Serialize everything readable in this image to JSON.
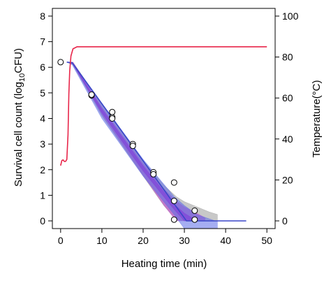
{
  "chart_data": {
    "type": "line",
    "xlabel": "Heating time (min)",
    "ylabel_left_main": "Survival cell count (log",
    "ylabel_left_sub": "10",
    "ylabel_left_end": "CFU)",
    "ylabel_right": "Temperature(°C)",
    "xlim": [
      -2,
      52
    ],
    "ylim": [
      -0.3,
      8.3
    ],
    "y2lim": [
      -3.75,
      103.75
    ],
    "x_ticks": [
      0,
      10,
      20,
      30,
      40,
      50
    ],
    "x_tick_labels": [
      "0",
      "10",
      "20",
      "30",
      "40",
      "50"
    ],
    "y_ticks": [
      0,
      1,
      2,
      3,
      4,
      5,
      6,
      7,
      8
    ],
    "y_tick_labels": [
      "0",
      "1",
      "2",
      "3",
      "4",
      "5",
      "6",
      "7",
      "8"
    ],
    "y2_ticks": [
      0,
      20,
      40,
      60,
      80,
      100
    ],
    "y2_tick_labels": [
      "0",
      "20",
      "40",
      "60",
      "80",
      "100"
    ],
    "colors": {
      "temperature": "#e8264a",
      "prediction_band_outer": "#9a9a9a",
      "prediction_band_mid": "#c060c8",
      "confidence_band": "#5b6be8",
      "confidence_band_inner": "#7e3cd9",
      "fit_line": "#3a46c8"
    },
    "series": [
      {
        "kind": "temperature",
        "axis": "right",
        "x": [
          0,
          0.3,
          0.6,
          0.9,
          1.2,
          1.5,
          1.8,
          2.0,
          2.2,
          2.5,
          3,
          4,
          6,
          10,
          20,
          30,
          40,
          50
        ],
        "y": [
          27,
          29.5,
          29.8,
          29,
          29,
          30,
          42,
          62,
          73,
          80.5,
          84,
          85,
          85,
          85,
          85,
          85,
          85,
          85
        ]
      },
      {
        "kind": "observed",
        "axis": "left",
        "x": [
          0,
          7.5,
          7.5,
          12.5,
          12.5,
          12.5,
          17.5,
          17.5,
          22.5,
          22.5,
          27.5,
          27.5,
          27.5,
          32.5,
          32.5
        ],
        "y": [
          6.2,
          4.9,
          4.93,
          4.25,
          4.05,
          4.0,
          3.0,
          2.93,
          1.9,
          1.82,
          1.5,
          0.78,
          0.05,
          0.4,
          0.05
        ]
      },
      {
        "kind": "fit",
        "axis": "left",
        "x": [
          1.5,
          2.8,
          30.5,
          45
        ],
        "y": [
          6.2,
          6.18,
          0,
          0
        ]
      }
    ],
    "bands": [
      {
        "kind": "prediction-outer",
        "x": [
          1.5,
          3,
          10,
          20,
          25,
          28,
          30,
          33,
          36,
          38
        ],
        "upper": [
          6.2,
          6.2,
          4.55,
          2.35,
          1.4,
          0.95,
          0.75,
          0.55,
          0.35,
          0.25
        ],
        "lower": [
          6.2,
          6.1,
          4.1,
          1.75,
          0.6,
          0.05,
          0,
          0,
          0,
          0
        ]
      },
      {
        "kind": "prediction-mid",
        "x": [
          1.5,
          3,
          10,
          20,
          25,
          28,
          30,
          33,
          35
        ],
        "upper": [
          6.2,
          6.2,
          4.45,
          2.25,
          1.25,
          0.78,
          0.55,
          0.3,
          0.12
        ],
        "lower": [
          6.2,
          6.12,
          4.15,
          1.78,
          0.62,
          0.0,
          0,
          0,
          0
        ]
      },
      {
        "kind": "confidence",
        "x": [
          1.5,
          2.8,
          10,
          20,
          27.5,
          30,
          33,
          37.5,
          38
        ],
        "upper": [
          6.2,
          6.2,
          4.6,
          2.4,
          0.95,
          0.6,
          0.25,
          0.0,
          0
        ],
        "lower": [
          6.2,
          6.1,
          4.0,
          1.75,
          0.25,
          -0.3,
          -0.3,
          -0.3,
          -0.3
        ]
      },
      {
        "kind": "confidence-inner",
        "x": [
          1.5,
          2.8,
          10,
          20,
          27.5,
          30,
          33
        ],
        "upper": [
          6.2,
          6.19,
          4.38,
          2.15,
          0.65,
          0.3,
          0.0
        ],
        "lower": [
          6.2,
          6.16,
          4.22,
          1.95,
          0.45,
          0.0,
          0.0
        ]
      }
    ]
  }
}
